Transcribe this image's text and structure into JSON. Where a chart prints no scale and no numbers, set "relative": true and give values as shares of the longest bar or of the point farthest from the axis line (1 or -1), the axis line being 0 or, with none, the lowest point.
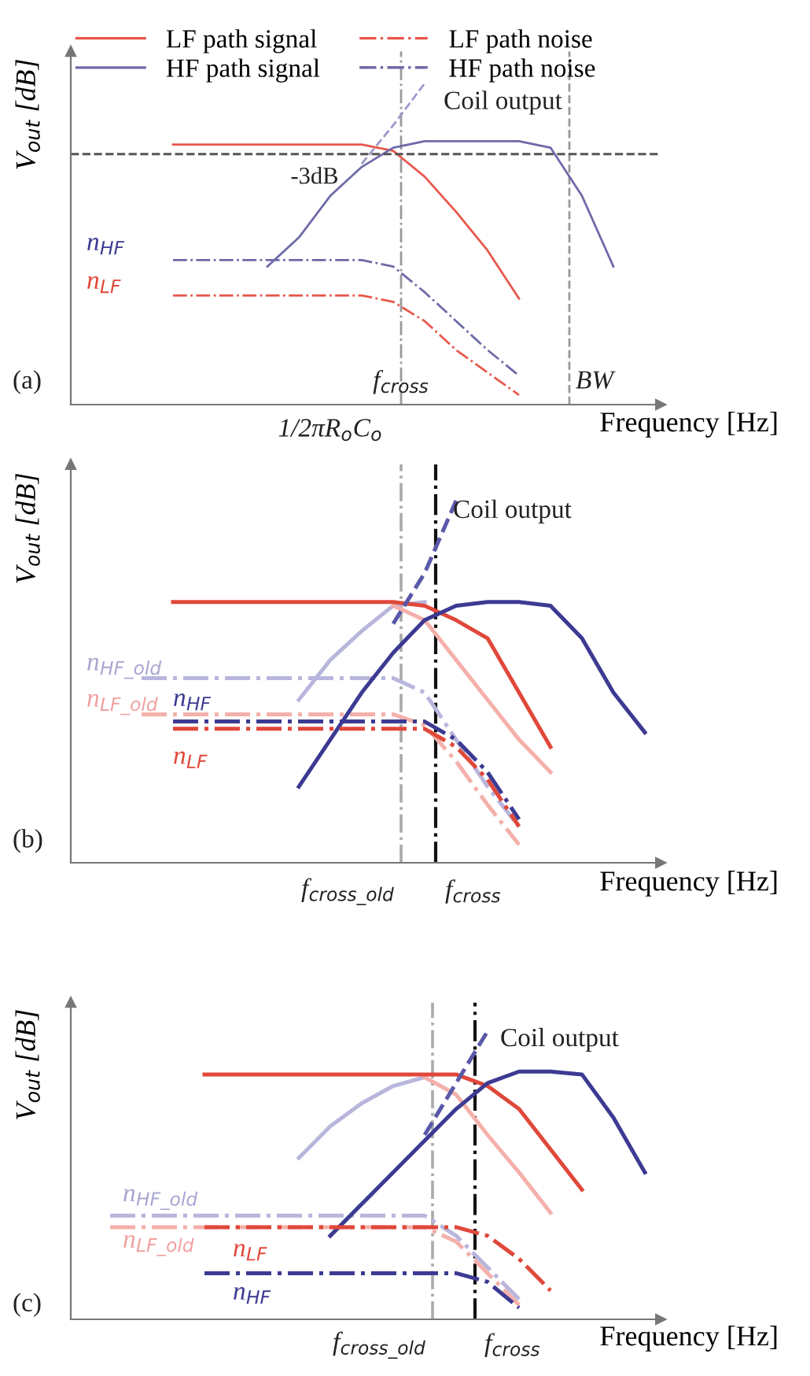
{
  "chart_data": [
    {
      "type": "line",
      "relative": true,
      "xlabel": "Frequency [Hz]",
      "ylabel": "V$_{out}$ [dB]",
      "legend": "top",
      "categories": [
        null,
        null,
        null,
        null,
        null,
        null,
        null,
        null,
        null,
        null,
        null,
        null,
        null,
        null,
        null,
        null,
        null,
        null,
        null
      ],
      "series": [
        {
          "name": "LF path signal",
          "color": "#e8584c",
          "line_style": "solid",
          "values": [
            null,
            null,
            null,
            0.81,
            0.81,
            0.81,
            0.81,
            0.81,
            0.81,
            0.81,
            0.79,
            0.71,
            0.6,
            0.48,
            0.33,
            null,
            null,
            null,
            null
          ]
        },
        {
          "name": "LF path noise",
          "color": "#e8584c",
          "line_style": "dashdot",
          "values": [
            null,
            null,
            null,
            0.34,
            0.34,
            0.34,
            0.34,
            0.34,
            0.34,
            0.34,
            0.32,
            0.26,
            0.17,
            0.1,
            0.03,
            null,
            null,
            null,
            null
          ]
        },
        {
          "name": "HF path signal",
          "color": "#6e6aa8",
          "line_style": "solid",
          "values": [
            null,
            null,
            null,
            null,
            null,
            null,
            0.43,
            0.52,
            0.65,
            0.74,
            0.8,
            0.82,
            0.82,
            0.82,
            0.82,
            0.8,
            0.65,
            0.43,
            null
          ]
        },
        {
          "name": "HF path noise",
          "color": "#6e6aa8",
          "line_style": "dashdot",
          "values": [
            null,
            null,
            null,
            0.45,
            0.45,
            0.45,
            0.45,
            0.45,
            0.45,
            0.45,
            0.43,
            0.35,
            0.26,
            0.17,
            0.09,
            null,
            null,
            null,
            null
          ]
        },
        {
          "color": "#9a98c8",
          "line_style": "dashed",
          "values": [
            null,
            null,
            null,
            null,
            null,
            null,
            null,
            null,
            null,
            0.75,
            0.87,
            1.0,
            null,
            null,
            null,
            null,
            null,
            null,
            null
          ]
        }
      ],
      "ref_lines": [
        {
          "axis": "y",
          "value": 0.78,
          "label": "-3dB",
          "color": "#555555",
          "line_style": "dashed"
        }
      ],
      "annotations": [
        "(a)",
        "Coil output",
        "n$_{HF}$",
        "n$_{LF}$",
        "1/2πR$_{o}$C$_{o}$",
        "f$_{cross}$",
        "BW"
      ]
    },
    {
      "type": "line",
      "relative": true,
      "xlabel": "Frequency [Hz]",
      "ylabel": "V$_{out}$ [dB]",
      "categories": [
        null,
        null,
        null,
        null,
        null,
        null,
        null,
        null,
        null,
        null,
        null,
        null,
        null,
        null,
        null,
        null,
        null,
        null,
        null
      ],
      "series": [
        {
          "color": "#b8b6dc",
          "line_style": "solid",
          "values": [
            null,
            null,
            null,
            null,
            null,
            null,
            null,
            0.45,
            0.56,
            0.64,
            0.71,
            0.72,
            null,
            null,
            null,
            null,
            null,
            null,
            null
          ]
        },
        {
          "color": "#f4b0aa",
          "line_style": "solid",
          "values": [
            null,
            null,
            null,
            null,
            null,
            null,
            null,
            null,
            null,
            null,
            0.71,
            0.67,
            0.56,
            0.45,
            0.34,
            0.25,
            null,
            null,
            null
          ]
        },
        {
          "color": "#b8b6dc",
          "line_style": "dashdot",
          "values": [
            null,
            null,
            0.51,
            0.51,
            0.51,
            0.51,
            0.51,
            0.51,
            0.51,
            0.51,
            0.51,
            0.47,
            0.34,
            0.21,
            0.1,
            null,
            null,
            null,
            null
          ]
        },
        {
          "color": "#f4b0aa",
          "line_style": "dashdot",
          "values": [
            null,
            null,
            0.41,
            0.41,
            0.41,
            0.41,
            0.41,
            0.41,
            0.41,
            0.41,
            0.41,
            0.38,
            0.28,
            0.16,
            0.05,
            null,
            null,
            null,
            null
          ]
        },
        {
          "color": "#e0483a",
          "line_style": "solid",
          "values": [
            null,
            null,
            null,
            0.72,
            0.72,
            0.72,
            0.72,
            0.72,
            0.72,
            0.72,
            0.72,
            0.71,
            0.67,
            0.62,
            0.47,
            0.32,
            null,
            null,
            null
          ]
        },
        {
          "color": "#3c3a92",
          "line_style": "solid",
          "values": [
            null,
            null,
            null,
            null,
            null,
            null,
            null,
            0.21,
            0.34,
            0.47,
            0.58,
            0.67,
            0.71,
            0.72,
            0.72,
            0.71,
            0.62,
            0.47,
            0.36
          ]
        },
        {
          "color": "#3c3a92",
          "line_style": "dashdot",
          "values": [
            null,
            null,
            null,
            0.39,
            0.39,
            0.39,
            0.39,
            0.39,
            0.39,
            0.39,
            0.39,
            0.39,
            0.34,
            0.25,
            0.12,
            null,
            null,
            null,
            null
          ]
        },
        {
          "color": "#e0483a",
          "line_style": "dashdot",
          "values": [
            null,
            null,
            null,
            0.37,
            0.37,
            0.37,
            0.37,
            0.37,
            0.37,
            0.37,
            0.37,
            0.37,
            0.32,
            0.23,
            0.1,
            null,
            null,
            null,
            null
          ]
        },
        {
          "color": "#5a58a8",
          "line_style": "dashed",
          "values": [
            null,
            null,
            null,
            null,
            null,
            null,
            null,
            null,
            null,
            null,
            0.66,
            0.8,
            1.0,
            null,
            null,
            null,
            null,
            null,
            null
          ]
        }
      ],
      "annotations": [
        "(b)",
        "Coil output",
        "n$_{HF_old}$",
        "n$_{LF_old}$",
        "n$_{HF}$",
        "n$_{LF}$",
        "f$_{cross_old}$",
        "f$_{cross}$"
      ]
    },
    {
      "type": "line",
      "relative": true,
      "xlabel": "Frequency [Hz]",
      "ylabel": "V$_{out}$ [dB]",
      "categories": [
        null,
        null,
        null,
        null,
        null,
        null,
        null,
        null,
        null,
        null,
        null,
        null,
        null,
        null,
        null,
        null,
        null,
        null,
        null
      ],
      "series": [
        {
          "color": "#b8b6dc",
          "line_style": "solid",
          "values": [
            null,
            null,
            null,
            null,
            null,
            null,
            null,
            0.56,
            0.67,
            0.75,
            0.81,
            0.84,
            null,
            null,
            null,
            null,
            null,
            null,
            null
          ]
        },
        {
          "color": "#f4b0aa",
          "line_style": "solid",
          "values": [
            null,
            null,
            null,
            null,
            null,
            null,
            null,
            null,
            null,
            null,
            null,
            0.84,
            0.78,
            0.64,
            0.51,
            0.37,
            null,
            null,
            null
          ]
        },
        {
          "color": "#b8b6dc",
          "line_style": "dashdot",
          "values": [
            null,
            0.36,
            0.36,
            0.36,
            0.36,
            0.36,
            0.36,
            0.36,
            0.36,
            0.36,
            0.36,
            0.36,
            0.29,
            0.18,
            0.07,
            null,
            null,
            null,
            null
          ]
        },
        {
          "color": "#f4b0aa",
          "line_style": "dashdot",
          "values": [
            null,
            0.32,
            0.32,
            0.32,
            0.32,
            0.32,
            0.32,
            0.32,
            0.32,
            0.32,
            0.32,
            0.32,
            0.27,
            0.16,
            0.05,
            null,
            null,
            null,
            null
          ]
        },
        {
          "color": "#e0483a",
          "line_style": "solid",
          "values": [
            null,
            null,
            null,
            null,
            0.85,
            0.85,
            0.85,
            0.85,
            0.85,
            0.85,
            0.85,
            0.85,
            0.85,
            0.81,
            0.73,
            0.59,
            0.45,
            null,
            null
          ]
        },
        {
          "color": "#3c3a92",
          "line_style": "solid",
          "values": [
            null,
            null,
            null,
            null,
            null,
            null,
            null,
            null,
            0.29,
            0.4,
            0.51,
            0.62,
            0.73,
            0.82,
            0.86,
            0.86,
            0.85,
            0.7,
            0.51
          ]
        },
        {
          "color": "#e0483a",
          "line_style": "dashdot",
          "values": [
            null,
            null,
            null,
            null,
            0.32,
            0.32,
            0.32,
            0.32,
            0.32,
            0.32,
            0.32,
            0.32,
            0.32,
            0.29,
            0.21,
            0.1,
            null,
            null,
            null
          ]
        },
        {
          "color": "#3c3a92",
          "line_style": "dashdot",
          "values": [
            null,
            null,
            null,
            null,
            0.16,
            0.16,
            0.16,
            0.16,
            0.16,
            0.16,
            0.16,
            0.16,
            0.16,
            0.13,
            0.04,
            null,
            null,
            null,
            null
          ]
        },
        {
          "color": "#5a58a8",
          "line_style": "dashed",
          "values": [
            null,
            null,
            null,
            null,
            null,
            null,
            null,
            null,
            null,
            null,
            null,
            0.64,
            0.82,
            1.0,
            null,
            null,
            null,
            null,
            null
          ]
        }
      ],
      "annotations": [
        "(c)",
        "Coil output",
        "n$_{HF_old}$",
        "n$_{LF_old}$",
        "n$_{LF}$",
        "n$_{HF}$",
        "f$_{cross_old}$",
        "f$_{cross}$"
      ]
    }
  ]
}
